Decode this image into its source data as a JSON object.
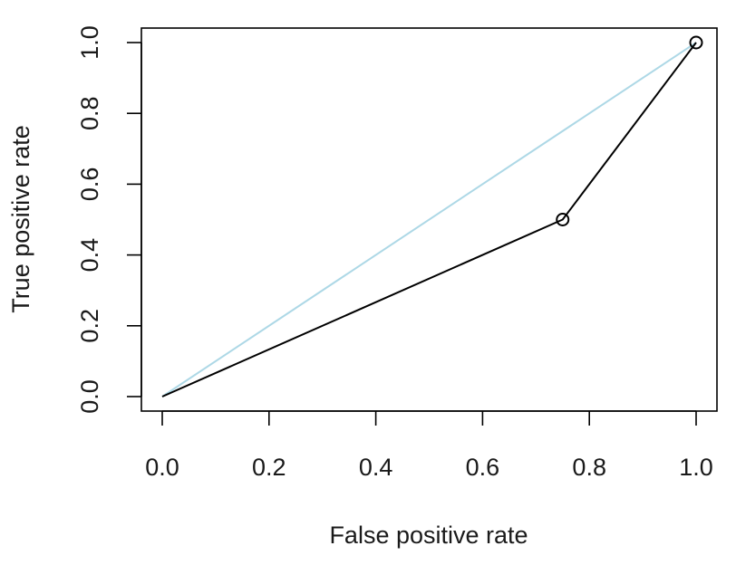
{
  "chart_data": {
    "type": "line",
    "title": "",
    "xlabel": "False positive rate",
    "ylabel": "True positive rate",
    "xlim": [
      0,
      1
    ],
    "ylim": [
      0,
      1
    ],
    "x_ticks": [
      "0.0",
      "0.2",
      "0.4",
      "0.6",
      "0.8",
      "1.0"
    ],
    "y_ticks": [
      "0.0",
      "0.2",
      "0.4",
      "0.6",
      "0.8",
      "1.0"
    ],
    "grid": false,
    "legend": "none",
    "series": [
      {
        "points": [
          {
            "x": 0,
            "y": 0
          },
          {
            "x": 0.75,
            "y": 0.5
          },
          {
            "x": 1,
            "y": 1
          }
        ],
        "marker_points": [
          {
            "x": 0.75,
            "y": 0.5
          },
          {
            "x": 1,
            "y": 1
          }
        ],
        "color": "#000000"
      },
      {
        "points": [
          {
            "x": 0,
            "y": 0
          },
          {
            "x": 1,
            "y": 1
          }
        ],
        "color": "#add8e6"
      }
    ]
  }
}
